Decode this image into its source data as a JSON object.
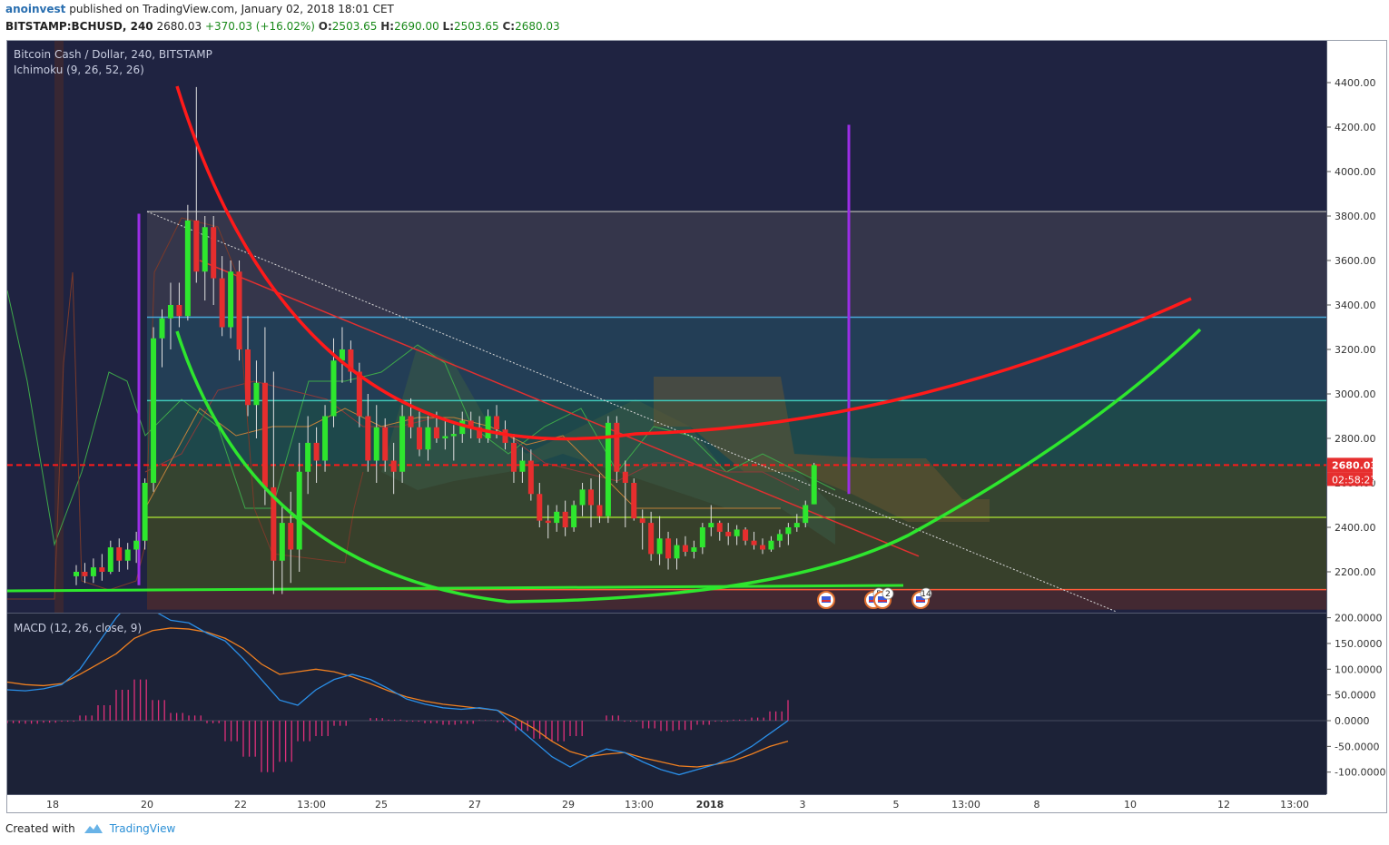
{
  "header": {
    "author": "anoinvest",
    "published": "published on TradingView.com, January 02, 2018 18:01 CET",
    "symbol": "BITSTAMP:BCHUSD, 240",
    "last": "2680.03",
    "change": "+370.03 (+16.02%)",
    "o_label": "O:",
    "o_value": "2503.65",
    "h_label": "H:",
    "h_value": "2690.00",
    "l_label": "L:",
    "l_value": "2503.65",
    "c_label": "C:",
    "c_value": "2680.03"
  },
  "chart_data": [
    {
      "type": "candlestick",
      "title": "Bitcoin Cash / Dollar, 240, BITSTAMP",
      "indicator": "Ichimoku (9, 26, 52, 26)",
      "ylim": [
        2030,
        4650
      ],
      "y_ticks": [
        "4400.00",
        "4200.00",
        "4000.00",
        "3800.00",
        "3600.00",
        "3400.00",
        "3200.00",
        "3000.00",
        "2800.00",
        "2600.00",
        "2400.00",
        "2200.00"
      ],
      "x_ticks": [
        "18",
        "20",
        "22",
        "13:00",
        "25",
        "27",
        "29",
        "13:00",
        "2018",
        "3",
        "5",
        "13:00",
        "8",
        "10",
        "12",
        "13:00"
      ],
      "current_price_label": "2680.03",
      "countdown_label": "02:58:27",
      "horizontal_levels": [
        {
          "price": 3820,
          "color": "#9e9e9e"
        },
        {
          "price": 3345,
          "color": "#4aa8d8"
        },
        {
          "price": 2970,
          "color": "#3fc9b8"
        },
        {
          "price": 2680.03,
          "color": "#ff1a1a"
        },
        {
          "price": 2445,
          "color": "#9acd32"
        },
        {
          "price": 2120,
          "color": "#ff5a3a"
        }
      ],
      "candles": [
        [
          2180,
          2230,
          2140,
          2200
        ],
        [
          2200,
          2240,
          2150,
          2180
        ],
        [
          2180,
          2260,
          2150,
          2220
        ],
        [
          2220,
          2280,
          2160,
          2200
        ],
        [
          2200,
          2340,
          2190,
          2310
        ],
        [
          2310,
          2350,
          2200,
          2250
        ],
        [
          2250,
          2330,
          2210,
          2300
        ],
        [
          2300,
          2380,
          2240,
          2340
        ],
        [
          2340,
          2620,
          2300,
          2600
        ],
        [
          2600,
          3300,
          2560,
          3250
        ],
        [
          3250,
          3380,
          3120,
          3340
        ],
        [
          3340,
          3500,
          3200,
          3400
        ],
        [
          3400,
          3500,
          3300,
          3350
        ],
        [
          3350,
          3850,
          3330,
          3780
        ],
        [
          3780,
          4380,
          3500,
          3550
        ],
        [
          3550,
          3800,
          3420,
          3750
        ],
        [
          3750,
          3800,
          3400,
          3520
        ],
        [
          3520,
          3620,
          3260,
          3300
        ],
        [
          3300,
          3600,
          3250,
          3550
        ],
        [
          3550,
          3600,
          3150,
          3200
        ],
        [
          3200,
          3350,
          2900,
          2950
        ],
        [
          2950,
          3150,
          2800,
          3050
        ],
        [
          3050,
          3300,
          2500,
          2580
        ],
        [
          2580,
          3100,
          2100,
          2250
        ],
        [
          2250,
          2500,
          2100,
          2420
        ],
        [
          2420,
          2560,
          2150,
          2300
        ],
        [
          2300,
          2780,
          2200,
          2650
        ],
        [
          2650,
          2900,
          2550,
          2780
        ],
        [
          2780,
          2850,
          2600,
          2700
        ],
        [
          2700,
          2950,
          2650,
          2900
        ],
        [
          2900,
          3250,
          2850,
          3150
        ],
        [
          3150,
          3300,
          3050,
          3200
        ],
        [
          3200,
          3240,
          3050,
          3100
        ],
        [
          3100,
          3140,
          2850,
          2900
        ],
        [
          2900,
          3000,
          2650,
          2700
        ],
        [
          2700,
          2950,
          2600,
          2850
        ],
        [
          2850,
          2890,
          2650,
          2700
        ],
        [
          2700,
          2780,
          2550,
          2650
        ],
        [
          2650,
          2950,
          2600,
          2900
        ],
        [
          2900,
          2980,
          2800,
          2850
        ],
        [
          2850,
          2920,
          2720,
          2750
        ],
        [
          2750,
          2900,
          2700,
          2850
        ],
        [
          2850,
          2920,
          2780,
          2800
        ],
        [
          2800,
          2880,
          2750,
          2810
        ],
        [
          2810,
          2860,
          2700,
          2820
        ],
        [
          2820,
          2920,
          2780,
          2880
        ],
        [
          2880,
          2920,
          2800,
          2850
        ],
        [
          2850,
          2900,
          2780,
          2800
        ],
        [
          2800,
          2930,
          2780,
          2900
        ],
        [
          2900,
          2950,
          2800,
          2840
        ],
        [
          2840,
          2880,
          2750,
          2780
        ],
        [
          2780,
          2820,
          2600,
          2650
        ],
        [
          2650,
          2760,
          2600,
          2700
        ],
        [
          2700,
          2750,
          2520,
          2550
        ],
        [
          2550,
          2600,
          2400,
          2430
        ],
        [
          2430,
          2500,
          2350,
          2420
        ],
        [
          2420,
          2500,
          2380,
          2470
        ],
        [
          2470,
          2520,
          2360,
          2400
        ],
        [
          2400,
          2520,
          2380,
          2500
        ],
        [
          2500,
          2600,
          2450,
          2570
        ],
        [
          2570,
          2620,
          2400,
          2500
        ],
        [
          2500,
          2640,
          2420,
          2450
        ],
        [
          2450,
          2900,
          2420,
          2870
        ],
        [
          2870,
          2900,
          2600,
          2650
        ],
        [
          2650,
          2700,
          2400,
          2600
        ],
        [
          2600,
          2620,
          2430,
          2440
        ],
        [
          2440,
          2480,
          2300,
          2420
        ],
        [
          2420,
          2470,
          2250,
          2280
        ],
        [
          2280,
          2450,
          2230,
          2350
        ],
        [
          2350,
          2380,
          2210,
          2260
        ],
        [
          2260,
          2350,
          2210,
          2320
        ],
        [
          2320,
          2360,
          2270,
          2290
        ],
        [
          2290,
          2340,
          2260,
          2310
        ],
        [
          2310,
          2420,
          2280,
          2400
        ],
        [
          2400,
          2500,
          2360,
          2420
        ],
        [
          2420,
          2430,
          2340,
          2380
        ],
        [
          2380,
          2420,
          2320,
          2360
        ],
        [
          2360,
          2410,
          2320,
          2390
        ],
        [
          2390,
          2400,
          2320,
          2340
        ],
        [
          2340,
          2380,
          2300,
          2320
        ],
        [
          2320,
          2350,
          2280,
          2300
        ],
        [
          2300,
          2360,
          2290,
          2340
        ],
        [
          2340,
          2390,
          2310,
          2370
        ],
        [
          2370,
          2420,
          2320,
          2400
        ],
        [
          2400,
          2460,
          2380,
          2420
        ],
        [
          2420,
          2520,
          2400,
          2500
        ],
        [
          2503.65,
          2690,
          2503.65,
          2680.03
        ]
      ],
      "markers": [
        {
          "label": ""
        },
        {
          "label": "5"
        },
        {
          "label": "2"
        },
        {
          "label": "14"
        }
      ]
    },
    {
      "type": "line",
      "title": "MACD (12, 26, close, 9)",
      "ylim": [
        -145,
        205
      ],
      "y_ticks": [
        "200.0000",
        "150.0000",
        "100.0000",
        "50.0000",
        "0.0000",
        "-50.0000",
        "-100.0000"
      ],
      "series": [
        {
          "values": [
            60,
            58,
            62,
            70,
            100,
            150,
            200,
            240,
            215,
            195,
            190,
            170,
            155,
            120,
            80,
            40,
            30,
            60,
            80,
            90,
            80,
            62,
            42,
            32,
            25,
            22,
            25,
            20,
            -10,
            -40,
            -70,
            -90,
            -70,
            -55,
            -62,
            -80,
            -95,
            -105,
            -95,
            -85,
            -70,
            -50,
            -25,
            0
          ]
        },
        {
          "values": [
            75,
            70,
            68,
            72,
            90,
            110,
            130,
            160,
            175,
            180,
            178,
            172,
            160,
            140,
            110,
            90,
            95,
            100,
            95,
            85,
            72,
            58,
            46,
            38,
            32,
            28,
            24,
            20,
            5,
            -15,
            -40,
            -60,
            -70,
            -65,
            -62,
            -72,
            -80,
            -88,
            -90,
            -85,
            -78,
            -65,
            -50,
            -40
          ]
        },
        {
          "values": [
            -5,
            -6,
            -4,
            -2,
            10,
            30,
            60,
            80,
            40,
            15,
            10,
            -5,
            -40,
            -70,
            -100,
            -80,
            -40,
            -30,
            -10,
            0,
            5,
            2,
            -2,
            -5,
            -8,
            -6,
            1,
            -3,
            -20,
            -35,
            -40,
            -30,
            0,
            10,
            -2,
            -15,
            -20,
            -18,
            -8,
            -2,
            2,
            6,
            18,
            40
          ]
        }
      ]
    }
  ],
  "footer": {
    "created_with": "Created with",
    "brand": "TradingView"
  }
}
